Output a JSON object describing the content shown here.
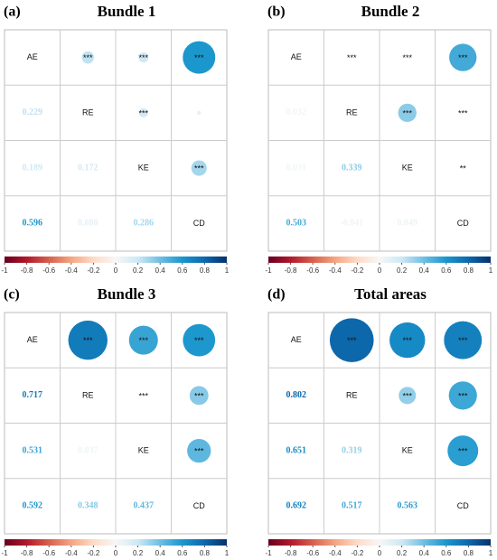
{
  "chart_data": [
    {
      "type": "corrplot",
      "label": "(a)",
      "title": "Bundle 1",
      "variables": [
        "AE",
        "RE",
        "KE",
        "CD"
      ],
      "values": [
        [
          null,
          null,
          null,
          null
        ],
        [
          0.229,
          null,
          null,
          null
        ],
        [
          0.189,
          0.172,
          null,
          null
        ],
        [
          0.596,
          0.08,
          0.286,
          null
        ]
      ],
      "value_labels": [
        [
          null,
          null,
          null,
          null
        ],
        [
          "0.229",
          null,
          null,
          null
        ],
        [
          "0.189",
          "0.172",
          null,
          null
        ],
        [
          "0.596",
          "0.080",
          "0.286",
          null
        ]
      ],
      "significance": [
        [
          null,
          "***",
          "***",
          "***"
        ],
        [
          null,
          null,
          "***",
          null
        ],
        [
          null,
          null,
          null,
          "***"
        ],
        [
          null,
          null,
          null,
          null
        ]
      ],
      "colormap": "RdBu",
      "clim": [
        -1,
        1
      ],
      "colorbar_ticks": [
        -1,
        -0.8,
        -0.6,
        -0.4,
        -0.2,
        0,
        0.2,
        0.4,
        0.6,
        0.8,
        1
      ]
    },
    {
      "type": "corrplot",
      "label": "(b)",
      "title": "Bundle 2",
      "variables": [
        "AE",
        "RE",
        "KE",
        "CD"
      ],
      "values": [
        [
          null,
          null,
          null,
          null
        ],
        [
          0.032,
          null,
          null,
          null
        ],
        [
          0.031,
          0.339,
          null,
          null
        ],
        [
          0.503,
          -0.041,
          0.049,
          null
        ]
      ],
      "value_labels": [
        [
          null,
          null,
          null,
          null
        ],
        [
          "0.032",
          null,
          null,
          null
        ],
        [
          "0.031",
          "0.339",
          null,
          null
        ],
        [
          "0.503",
          "-0.041",
          "0.049",
          null
        ]
      ],
      "significance": [
        [
          null,
          "***",
          "***",
          "***"
        ],
        [
          null,
          null,
          "***",
          "***"
        ],
        [
          null,
          null,
          null,
          "**"
        ],
        [
          null,
          null,
          null,
          null
        ]
      ],
      "colormap": "RdBu",
      "clim": [
        -1,
        1
      ],
      "colorbar_ticks": [
        -1,
        -0.8,
        -0.6,
        -0.4,
        -0.2,
        0,
        0.2,
        0.4,
        0.6,
        0.8,
        1
      ]
    },
    {
      "type": "corrplot",
      "label": "(c)",
      "title": "Bundle 3",
      "variables": [
        "AE",
        "RE",
        "KE",
        "CD"
      ],
      "values": [
        [
          null,
          null,
          null,
          null
        ],
        [
          0.717,
          null,
          null,
          null
        ],
        [
          0.531,
          0.037,
          null,
          null
        ],
        [
          0.592,
          0.348,
          0.437,
          null
        ]
      ],
      "value_labels": [
        [
          null,
          null,
          null,
          null
        ],
        [
          "0.717",
          null,
          null,
          null
        ],
        [
          "0.531",
          "0.037",
          null,
          null
        ],
        [
          "0.592",
          "0.348",
          "0.437",
          null
        ]
      ],
      "significance": [
        [
          null,
          "***",
          "***",
          "***"
        ],
        [
          null,
          null,
          "***",
          "***"
        ],
        [
          null,
          null,
          null,
          "***"
        ],
        [
          null,
          null,
          null,
          null
        ]
      ],
      "colormap": "RdBu",
      "clim": [
        -1,
        1
      ],
      "colorbar_ticks": [
        -1,
        -0.8,
        -0.6,
        -0.4,
        -0.2,
        0,
        0.2,
        0.4,
        0.6,
        0.8,
        1
      ]
    },
    {
      "type": "corrplot",
      "label": "(d)",
      "title": "Total areas",
      "variables": [
        "AE",
        "RE",
        "KE",
        "CD"
      ],
      "values": [
        [
          null,
          null,
          null,
          null
        ],
        [
          0.802,
          null,
          null,
          null
        ],
        [
          0.651,
          0.319,
          null,
          null
        ],
        [
          0.692,
          0.517,
          0.563,
          null
        ]
      ],
      "value_labels": [
        [
          null,
          null,
          null,
          null
        ],
        [
          "0.802",
          null,
          null,
          null
        ],
        [
          "0.651",
          "0.319",
          null,
          null
        ],
        [
          "0.692",
          "0.517",
          "0.563",
          null
        ]
      ],
      "significance": [
        [
          null,
          "***",
          "***",
          "***"
        ],
        [
          null,
          null,
          "***",
          "***"
        ],
        [
          null,
          null,
          null,
          "***"
        ],
        [
          null,
          null,
          null,
          null
        ]
      ],
      "colormap": "RdBu",
      "clim": [
        -1,
        1
      ],
      "colorbar_ticks": [
        -1,
        -0.8,
        -0.6,
        -0.4,
        -0.2,
        0,
        0.2,
        0.4,
        0.6,
        0.8,
        1
      ]
    }
  ]
}
